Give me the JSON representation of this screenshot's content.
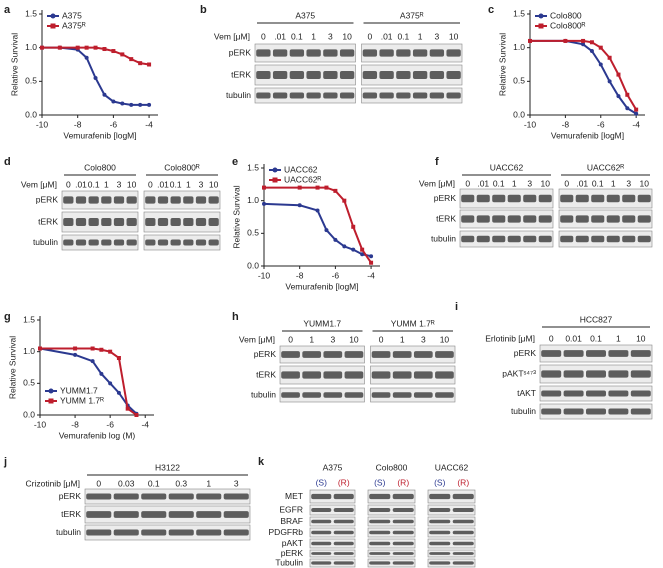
{
  "chart_data": [
    {
      "type": "line",
      "letter": "a",
      "xlabel": "Vemurafenib [logM]",
      "ylabel": "Relative Survival",
      "legend": "upper left",
      "xlim": [
        -10,
        -3.5
      ],
      "xticks": [
        -10,
        -8,
        -6,
        -4
      ],
      "ylim": [
        0,
        1.5
      ],
      "yticks": [
        {
          "value": 0,
          "label": "0.0"
        },
        {
          "value": 0.5,
          "label": "0.5"
        },
        {
          "value": 1,
          "label": "1.0"
        },
        {
          "value": 1.5,
          "label": "1.5"
        }
      ],
      "x": [
        -10,
        -9,
        -8,
        -7.5,
        -7,
        -6.5,
        -6,
        -5.5,
        -5,
        -4.5,
        -4
      ],
      "series": [
        {
          "name": "A375",
          "color": "#2b3990",
          "values": [
            1.0,
            1.0,
            0.97,
            0.85,
            0.55,
            0.3,
            0.2,
            0.17,
            0.15,
            0.15,
            0.15
          ]
        },
        {
          "name": "A375ᴿ",
          "color": "#be1e2d",
          "values": [
            1.0,
            1.0,
            1.0,
            1.0,
            1.0,
            0.98,
            0.95,
            0.9,
            0.83,
            0.77,
            0.75
          ]
        }
      ]
    },
    {
      "type": "line",
      "letter": "c",
      "xlabel": "Vemurafenib [logM]",
      "ylabel": "Relative Survival",
      "legend": "upper left",
      "xlim": [
        -10,
        -3.5
      ],
      "xticks": [
        -10,
        -8,
        -6,
        -4
      ],
      "ylim": [
        0,
        1.5
      ],
      "yticks": [
        {
          "value": 0,
          "label": "0.0"
        },
        {
          "value": 0.5,
          "label": "0.5"
        },
        {
          "value": 1,
          "label": "1.0"
        },
        {
          "value": 1.5,
          "label": "1.5"
        }
      ],
      "x": [
        -10,
        -8,
        -7,
        -6.5,
        -6,
        -5.5,
        -5,
        -4.5,
        -4
      ],
      "series": [
        {
          "name": "Colo800",
          "color": "#2b3990",
          "values": [
            1.1,
            1.1,
            1.05,
            0.95,
            0.75,
            0.5,
            0.28,
            0.1,
            0.02
          ]
        },
        {
          "name": "Colo800ᴿ",
          "color": "#be1e2d",
          "values": [
            1.1,
            1.1,
            1.1,
            1.08,
            1.0,
            0.85,
            0.6,
            0.3,
            0.08
          ]
        }
      ]
    },
    {
      "type": "line",
      "letter": "e",
      "xlabel": "Vemurafenib [logM]",
      "ylabel": "Relative Survival",
      "legend": "upper left",
      "xlim": [
        -10,
        -3.5
      ],
      "xticks": [
        -10,
        -8,
        -6,
        -4
      ],
      "ylim": [
        0,
        1.5
      ],
      "yticks": [
        {
          "value": 0,
          "label": "0.0"
        },
        {
          "value": 0.5,
          "label": "0.5"
        },
        {
          "value": 1,
          "label": "1.0"
        },
        {
          "value": 1.5,
          "label": "1.5"
        }
      ],
      "x": [
        -10,
        -8,
        -7,
        -6.5,
        -6,
        -5.5,
        -5,
        -4.5,
        -4
      ],
      "series": [
        {
          "name": "UACC62",
          "color": "#2b3990",
          "values": [
            0.95,
            0.93,
            0.85,
            0.55,
            0.4,
            0.3,
            0.25,
            0.18,
            0.15
          ]
        },
        {
          "name": "UACC62ᴿ",
          "color": "#be1e2d",
          "values": [
            1.2,
            1.2,
            1.2,
            1.2,
            1.15,
            1.0,
            0.6,
            0.25,
            0.05
          ]
        }
      ]
    },
    {
      "type": "line",
      "letter": "g",
      "xlabel": "Vemurafenib log (M)",
      "ylabel": "Relative Survival",
      "legend": "lower left",
      "xlim": [
        -10,
        -3.5
      ],
      "xticks": [
        -10,
        -8,
        -6,
        -4
      ],
      "ylim": [
        0,
        1.5
      ],
      "yticks": [
        {
          "value": 0,
          "label": "0.0"
        },
        {
          "value": 0.5,
          "label": "0.5"
        },
        {
          "value": 1,
          "label": "1.0"
        },
        {
          "value": 1.5,
          "label": "1.5"
        }
      ],
      "x": [
        -10,
        -8,
        -7,
        -6.5,
        -6,
        -5.5,
        -5,
        -4.5
      ],
      "series": [
        {
          "name": "YUMM1.7",
          "color": "#2b3990",
          "values": [
            1.05,
            0.95,
            0.85,
            0.65,
            0.5,
            0.35,
            0.15,
            0.02
          ]
        },
        {
          "name": "YUMM 1.7ᴿ",
          "color": "#be1e2d",
          "values": [
            1.05,
            1.05,
            1.05,
            1.03,
            1.0,
            0.9,
            0.1,
            0.0
          ]
        }
      ]
    }
  ],
  "blots": [
    {
      "letter": "b",
      "treatment": "Vem [μM]",
      "groups": [
        {
          "name": "A375",
          "lanes": [
            "0",
            ".01",
            "0.1",
            "1",
            "3",
            "10"
          ]
        },
        {
          "name": "A375ᴿ",
          "lanes": [
            "0",
            ".01",
            "0.1",
            "1",
            "3",
            "10"
          ]
        }
      ],
      "rows": [
        "pERK",
        "tERK",
        "tubulin"
      ]
    },
    {
      "letter": "d",
      "treatment": "Vem [μM]",
      "groups": [
        {
          "name": "Colo800",
          "lanes": [
            "0",
            ".01",
            "0.1",
            "1",
            "3",
            "10"
          ]
        },
        {
          "name": "Colo800ᴿ",
          "lanes": [
            "0",
            ".01",
            "0.1",
            "1",
            "3",
            "10"
          ]
        }
      ],
      "rows": [
        "pERK",
        "tERK",
        "tubulin"
      ]
    },
    {
      "letter": "f",
      "treatment": "Vem [μM]",
      "groups": [
        {
          "name": "UACC62",
          "lanes": [
            "0",
            ".01",
            "0.1",
            "1",
            "3",
            "10"
          ]
        },
        {
          "name": "UACC62ᴿ",
          "lanes": [
            "0",
            ".01",
            "0.1",
            "1",
            "3",
            "10"
          ]
        }
      ],
      "rows": [
        "pERK",
        "tERK",
        "tubulin"
      ]
    },
    {
      "letter": "h",
      "treatment": "Vem [μM]",
      "groups": [
        {
          "name": "YUMM1.7",
          "lanes": [
            "0",
            "1",
            "3",
            "10"
          ]
        },
        {
          "name": "YUMM 1.7ᴿ",
          "lanes": [
            "0",
            "1",
            "3",
            "10"
          ]
        }
      ],
      "rows": [
        "pERK",
        "tERK",
        "tubulin"
      ]
    },
    {
      "letter": "i",
      "treatment": "Erlotinib [μM]",
      "groups": [
        {
          "name": "HCC827",
          "lanes": [
            "0",
            "0.01",
            "0.1",
            "1",
            "10"
          ]
        }
      ],
      "rows": [
        "pERK",
        "pAKTˢ⁴⁷³",
        "tAKT",
        "tubulin"
      ]
    },
    {
      "letter": "j",
      "treatment": "Crizotinib [μM]",
      "groups": [
        {
          "name": "H3122",
          "lanes": [
            "0",
            "0.03",
            "0.1",
            "0.3",
            "1",
            "3"
          ]
        }
      ],
      "rows": [
        "pERK",
        "tERK",
        "tubulin"
      ]
    },
    {
      "letter": "k",
      "lane_colors": [
        "#2b3990",
        "#be1e2d"
      ],
      "groups": [
        {
          "name": "A375",
          "lanes": [
            "(S)",
            "(R)"
          ]
        },
        {
          "name": "Colo800",
          "lanes": [
            "(S)",
            "(R)"
          ]
        },
        {
          "name": "UACC62",
          "lanes": [
            "(S)",
            "(R)"
          ]
        }
      ],
      "rows": [
        "MET",
        "EGFR",
        "BRAF",
        "PDGFRb",
        "pAKT",
        "pERK",
        "Tubulin"
      ]
    }
  ]
}
